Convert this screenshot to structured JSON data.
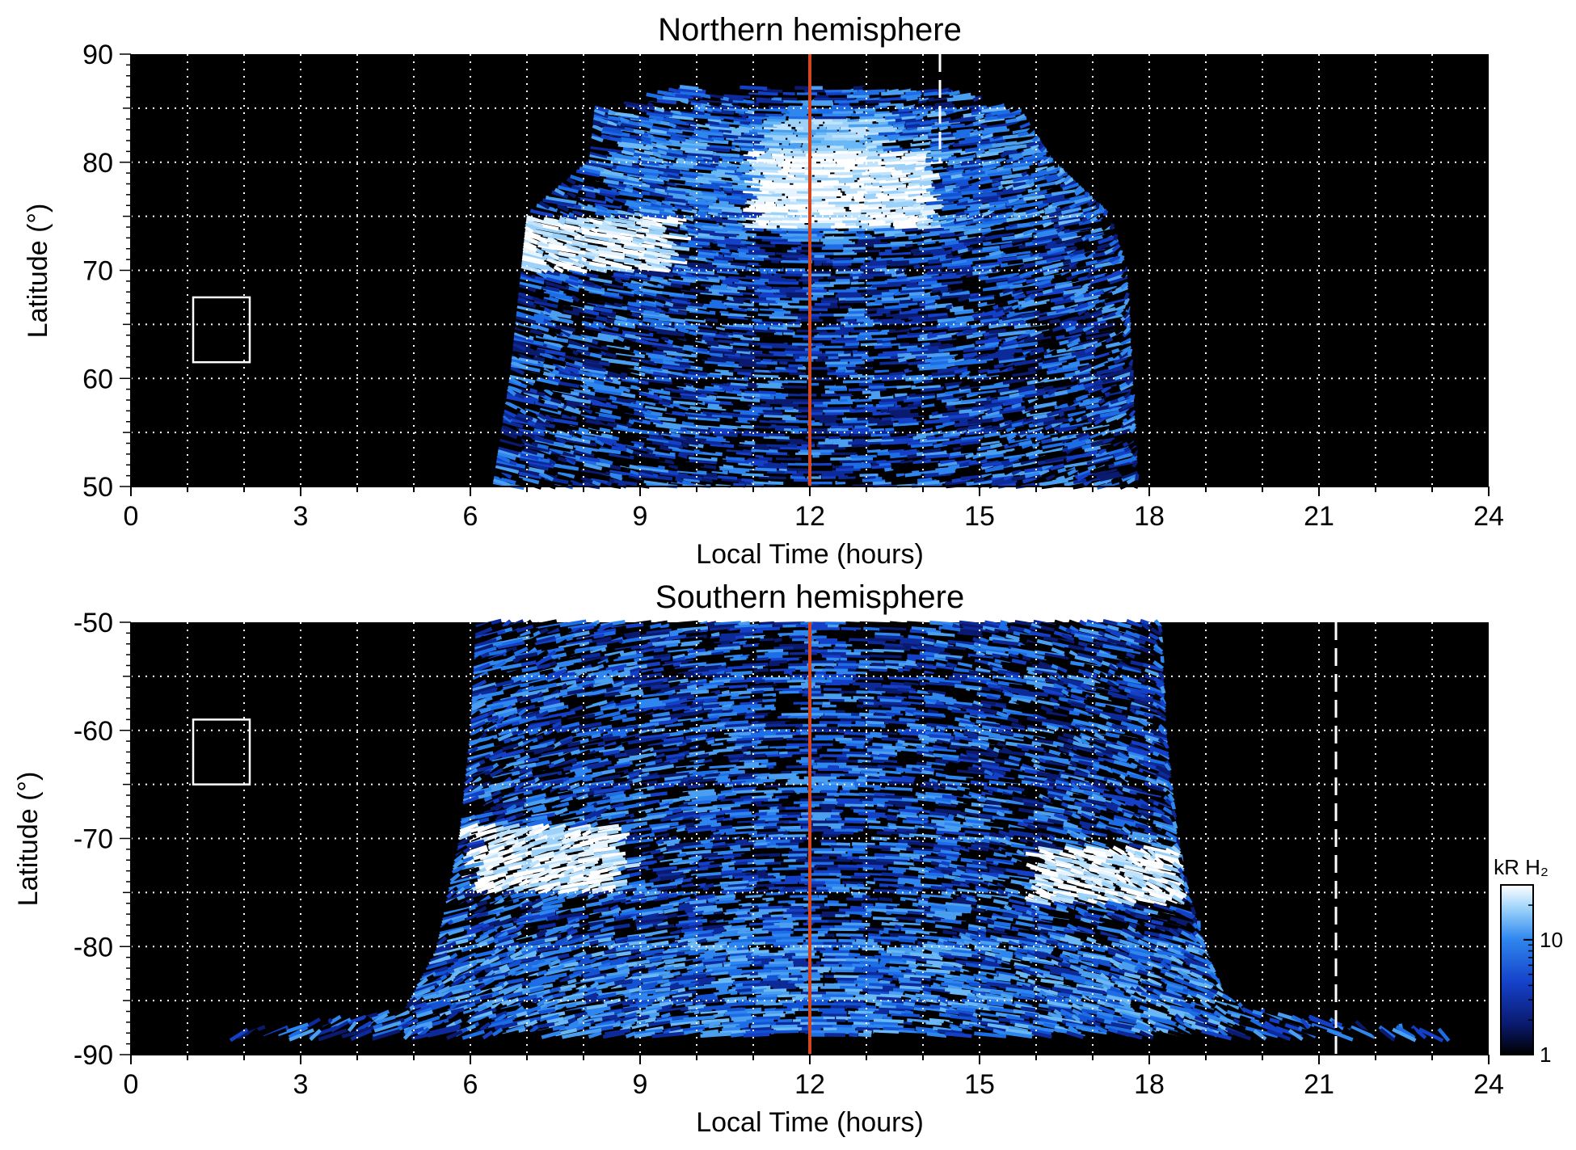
{
  "chart_data": [
    {
      "type": "heatmap",
      "title": "Northern hemisphere",
      "xlabel": "Local Time (hours)",
      "ylabel": "Latitude (°)",
      "xlim": [
        0,
        24
      ],
      "ylim": [
        50,
        90
      ],
      "x_ticks": [
        "0",
        "3",
        "6",
        "9",
        "12",
        "15",
        "18",
        "21",
        "24"
      ],
      "y_ticks": [
        "50",
        "60",
        "70",
        "80",
        "90"
      ],
      "grid": true,
      "background": "#000000",
      "aurora_region": {
        "lt_range_at_lat": [
          [
            50,
            6.4,
            17.8
          ],
          [
            60,
            6.7,
            17.7
          ],
          [
            70,
            6.9,
            17.6
          ],
          [
            75,
            7.0,
            17.3
          ],
          [
            80,
            8.1,
            16.3
          ],
          [
            85,
            8.2,
            15.7
          ],
          [
            87,
            9.8,
            14.2
          ]
        ],
        "bright_arcs": [
          {
            "lt_range": [
              6.9,
              9.4
            ],
            "lat_range": [
              70,
              75
            ],
            "level": "bright"
          },
          {
            "lt_range": [
              10.8,
              14.0
            ],
            "lat_range": [
              74,
              81
            ],
            "level": "bright"
          },
          {
            "lt_range": [
              11.0,
              13.2
            ],
            "lat_range": [
              81,
              84
            ],
            "level": "medium"
          },
          {
            "lt_range": [
              8.2,
              17.0
            ],
            "lat_range": [
              73,
              85
            ],
            "level": "oval"
          },
          {
            "lt_range": [
              6.6,
              17.6
            ],
            "lat_range": [
              50,
              73
            ],
            "level": "diffuse"
          }
        ]
      },
      "noon_line_lt": 12,
      "noon_line_color": "#d4461f",
      "dashed_line_lt": 14.3,
      "dashed_line_lat_range": [
        80,
        90
      ],
      "box": {
        "lt_range": [
          1.1,
          2.1
        ],
        "lat_range": [
          61.5,
          67.5
        ]
      }
    },
    {
      "type": "heatmap",
      "title": "Southern hemisphere",
      "xlabel": "Local Time (hours)",
      "ylabel": "Latitude (°)",
      "xlim": [
        0,
        24
      ],
      "ylim": [
        -90,
        -50
      ],
      "x_ticks": [
        "0",
        "3",
        "6",
        "9",
        "12",
        "15",
        "18",
        "21",
        "24"
      ],
      "y_ticks": [
        "-50",
        "-60",
        "-70",
        "-80",
        "-90"
      ],
      "grid": true,
      "background": "#000000",
      "aurora_region": {
        "lt_range_at_lat": [
          [
            -50,
            6.1,
            18.2
          ],
          [
            -60,
            6.0,
            18.3
          ],
          [
            -70,
            5.8,
            18.5
          ],
          [
            -75,
            5.6,
            18.7
          ],
          [
            -80,
            5.4,
            19.0
          ],
          [
            -84,
            5.0,
            19.3
          ],
          [
            -86,
            4.8,
            19.8
          ],
          [
            -88.3,
            1.3,
            23.5
          ]
        ],
        "bright_arcs": [
          {
            "lt_range": [
              5.8,
              8.5
            ],
            "lat_range": [
              -75,
              -69
            ],
            "level": "bright"
          },
          {
            "lt_range": [
              15.8,
              18.5
            ],
            "lat_range": [
              -76,
              -71
            ],
            "level": "bright"
          },
          {
            "lt_range": [
              5.0,
              19.5
            ],
            "lat_range": [
              -88,
              -79
            ],
            "level": "oval"
          },
          {
            "lt_range": [
              6.0,
              18.3
            ],
            "lat_range": [
              -79,
              -50
            ],
            "level": "diffuse"
          }
        ]
      },
      "noon_line_lt": 12,
      "noon_line_color": "#d4461f",
      "dashed_line_lt": 21.3,
      "dashed_line_lat_range": [
        -90,
        -50
      ],
      "box": {
        "lt_range": [
          1.1,
          2.1
        ],
        "lat_range": [
          -65,
          -59
        ]
      }
    }
  ],
  "colorbar": {
    "label": "kR H₂",
    "ticks": [
      "1",
      "10"
    ],
    "tick_values": [
      1,
      10
    ],
    "range": [
      1,
      30
    ],
    "scale": "log",
    "colors": [
      "#000000",
      "#0a1a6e",
      "#1440c8",
      "#2f86ee",
      "#9cd2fa",
      "#ffffff"
    ]
  },
  "colors": {
    "grid": "#ffffff",
    "box": "#ffffff",
    "dashed_line": "#ffffff"
  }
}
